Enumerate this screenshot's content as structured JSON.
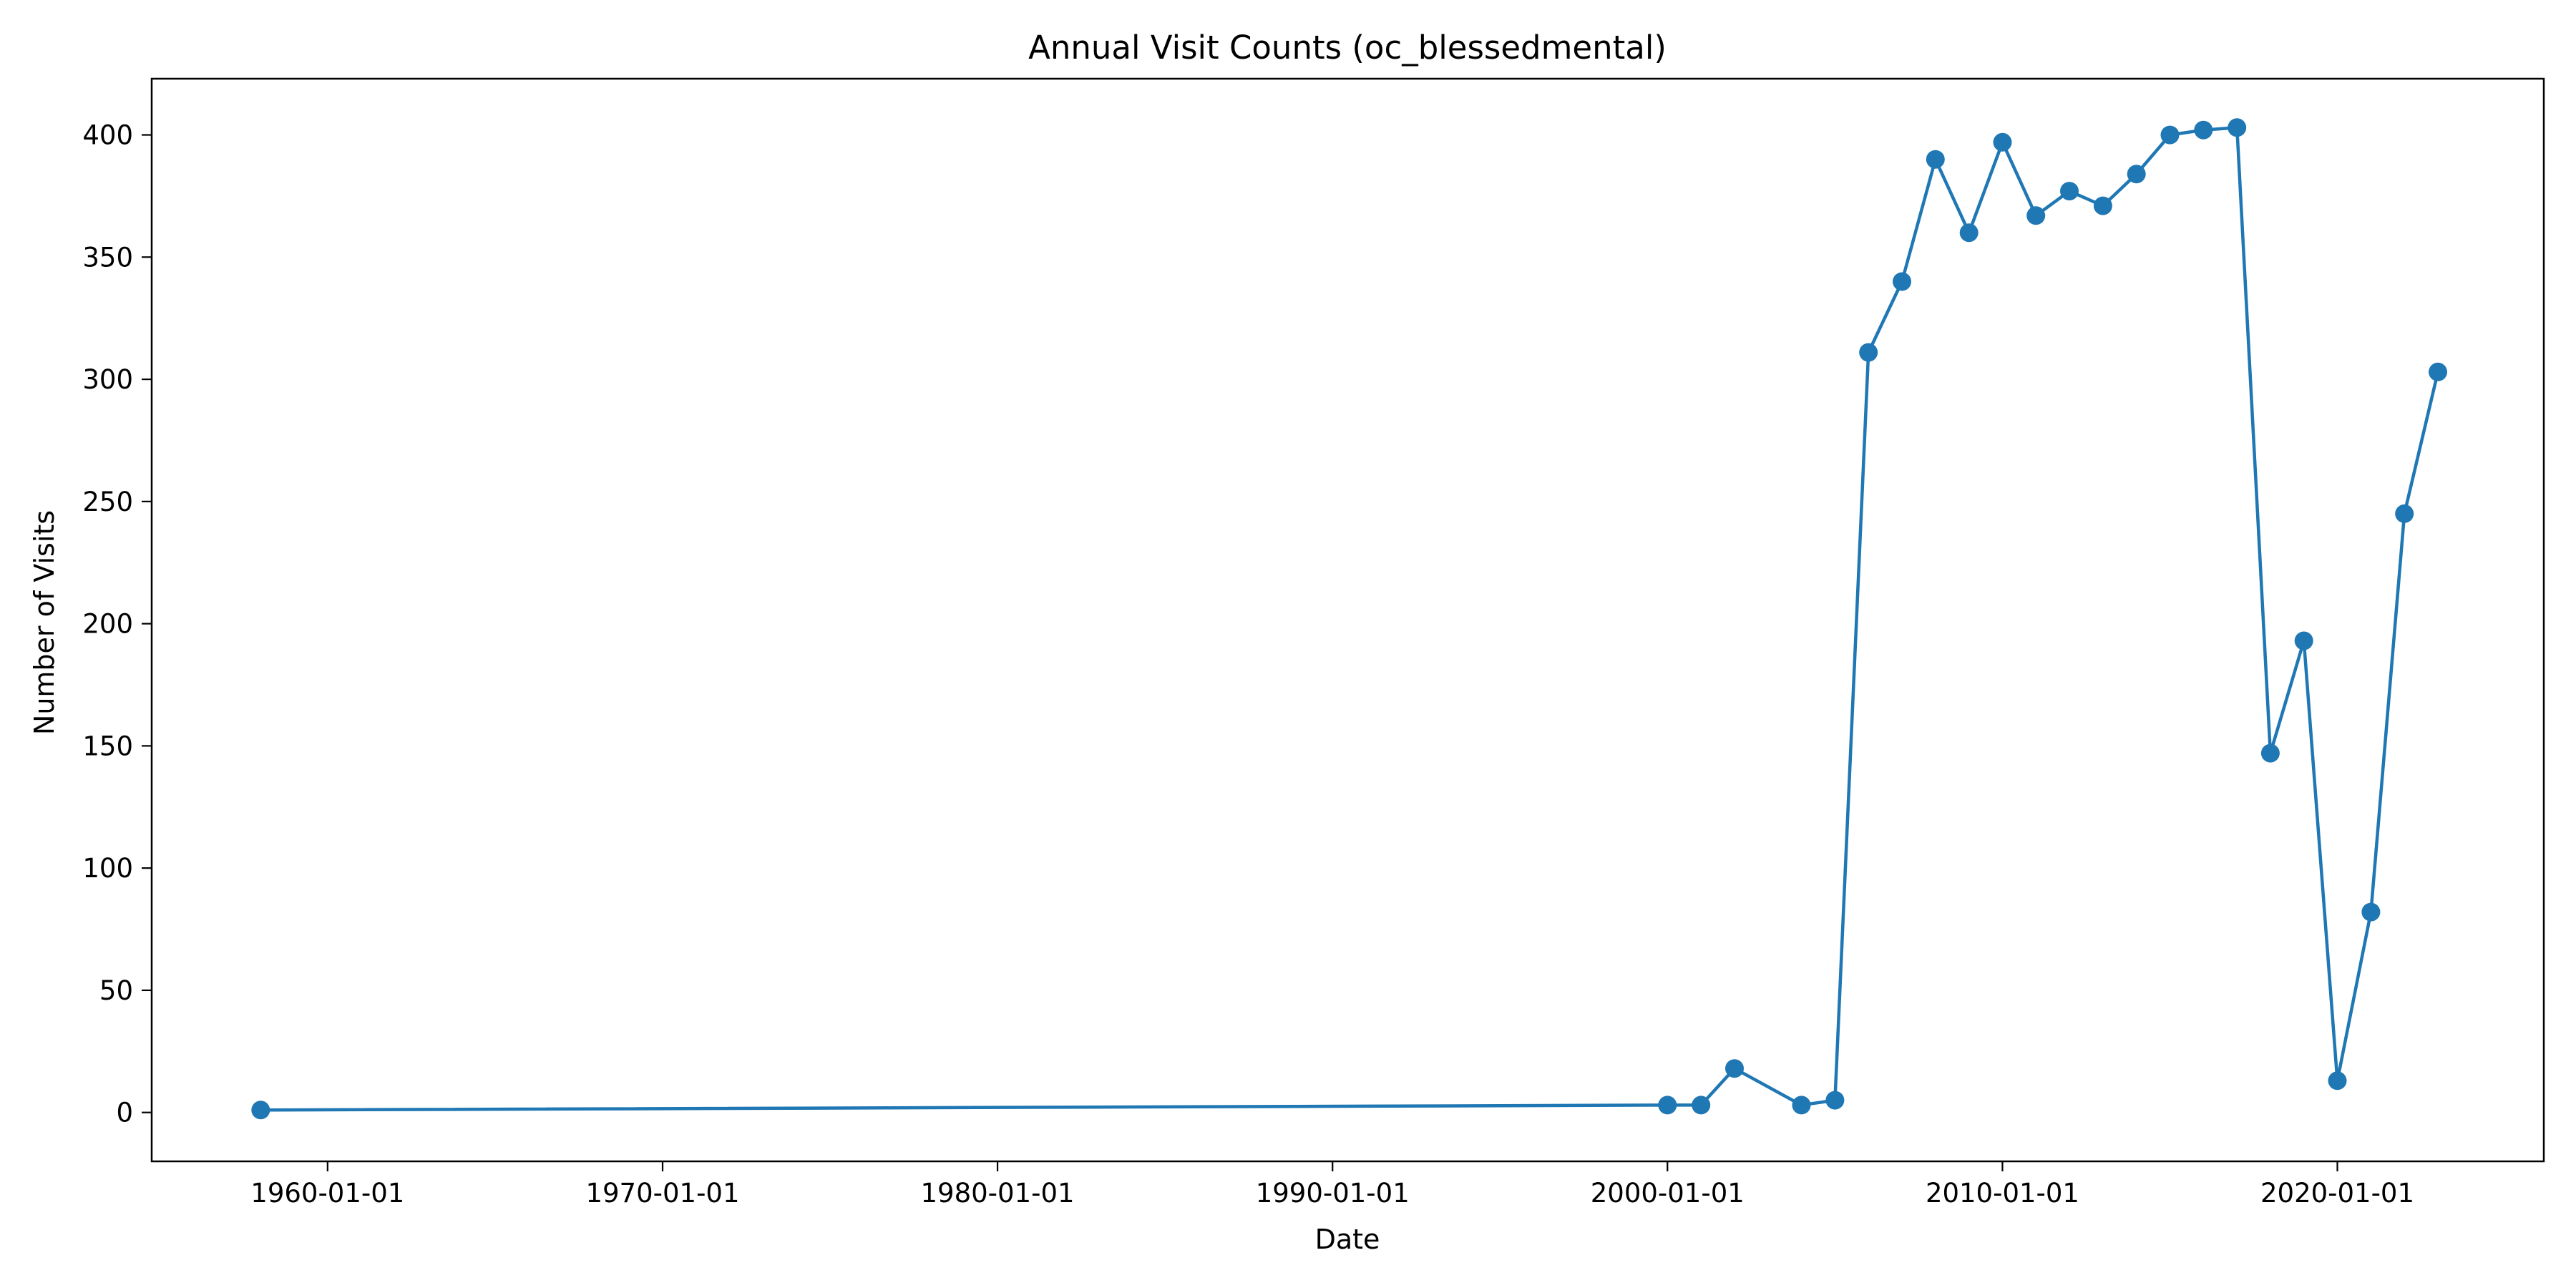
{
  "chart_data": {
    "type": "line",
    "title": "Annual Visit Counts (oc_blessedmental)",
    "xlabel": "Date",
    "ylabel": "Number of Visits",
    "x_axis_type": "date",
    "xlim": [
      "1954-10-01",
      "2026-03-01"
    ],
    "ylim": [
      -20,
      423
    ],
    "x_ticks": [
      "1960-01-01",
      "1970-01-01",
      "1980-01-01",
      "1990-01-01",
      "2000-01-01",
      "2010-01-01",
      "2020-01-01"
    ],
    "y_ticks": [
      0,
      50,
      100,
      150,
      200,
      250,
      300,
      350,
      400
    ],
    "grid": false,
    "marker": "circle",
    "series": [
      {
        "color": "#1f77b4",
        "points": [
          {
            "x": "1958-01-01",
            "y": 1
          },
          {
            "x": "2000-01-01",
            "y": 3
          },
          {
            "x": "2001-01-01",
            "y": 3
          },
          {
            "x": "2002-01-01",
            "y": 18
          },
          {
            "x": "2004-01-01",
            "y": 3
          },
          {
            "x": "2005-01-01",
            "y": 5
          },
          {
            "x": "2006-01-01",
            "y": 311
          },
          {
            "x": "2007-01-01",
            "y": 340
          },
          {
            "x": "2008-01-01",
            "y": 390
          },
          {
            "x": "2009-01-01",
            "y": 360
          },
          {
            "x": "2010-01-01",
            "y": 397
          },
          {
            "x": "2011-01-01",
            "y": 367
          },
          {
            "x": "2012-01-01",
            "y": 377
          },
          {
            "x": "2013-01-01",
            "y": 371
          },
          {
            "x": "2014-01-01",
            "y": 384
          },
          {
            "x": "2015-01-01",
            "y": 400
          },
          {
            "x": "2016-01-01",
            "y": 402
          },
          {
            "x": "2017-01-01",
            "y": 403
          },
          {
            "x": "2018-01-01",
            "y": 147
          },
          {
            "x": "2019-01-01",
            "y": 193
          },
          {
            "x": "2020-01-01",
            "y": 13
          },
          {
            "x": "2021-01-01",
            "y": 82
          },
          {
            "x": "2022-01-01",
            "y": 245
          },
          {
            "x": "2023-01-01",
            "y": 303
          }
        ]
      }
    ]
  }
}
